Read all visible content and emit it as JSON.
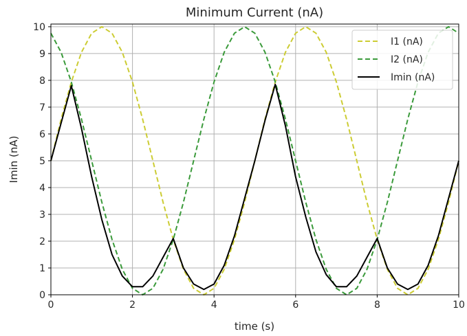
{
  "chart_data": {
    "type": "line",
    "title": "Minimum Current (nA)",
    "xlabel": "time (s)",
    "ylabel": "Imin (nA)",
    "xlim": [
      0,
      10
    ],
    "ylim": [
      0,
      10.1
    ],
    "xticks": [
      0,
      2,
      4,
      6,
      8,
      10
    ],
    "yticks": [
      0,
      1,
      2,
      3,
      4,
      5,
      6,
      7,
      8,
      9,
      10
    ],
    "grid": true,
    "legend_position": "top-right",
    "x": [
      0,
      0.25,
      0.5,
      0.75,
      1,
      1.25,
      1.5,
      1.75,
      2,
      2.25,
      2.5,
      2.75,
      3,
      3.25,
      3.5,
      3.75,
      4,
      4.25,
      4.5,
      4.75,
      5,
      5.25,
      5.5,
      5.75,
      6,
      6.25,
      6.5,
      6.75,
      7,
      7.25,
      7.5,
      7.75,
      8,
      8.25,
      8.5,
      8.75,
      9,
      9.25,
      9.5,
      9.75,
      10
    ],
    "series": [
      {
        "name": "I1 (nA)",
        "color": "#cccc33",
        "style": "dashed",
        "values": [
          5.0,
          6.55,
          7.94,
          9.05,
          9.76,
          10.0,
          9.76,
          9.05,
          7.94,
          6.55,
          5.0,
          3.45,
          2.06,
          0.95,
          0.24,
          0.0,
          0.24,
          0.95,
          2.06,
          3.45,
          5.0,
          6.55,
          7.94,
          9.05,
          9.76,
          10.0,
          9.76,
          9.05,
          7.94,
          6.55,
          5.0,
          3.45,
          2.06,
          0.95,
          0.24,
          0.0,
          0.24,
          0.95,
          2.06,
          3.45,
          5.0
        ]
      },
      {
        "name": "I2 (nA)",
        "color": "#3a9a3a",
        "style": "dashed",
        "values": [
          9.76,
          9.05,
          7.94,
          6.55,
          5.0,
          3.45,
          2.06,
          0.95,
          0.24,
          0.0,
          0.24,
          0.95,
          2.06,
          3.45,
          5.0,
          6.55,
          7.94,
          9.05,
          9.76,
          10.0,
          9.76,
          9.05,
          7.94,
          6.55,
          5.0,
          3.45,
          2.06,
          0.95,
          0.24,
          0.0,
          0.24,
          0.95,
          2.06,
          3.45,
          5.0,
          6.55,
          7.94,
          9.05,
          9.76,
          10.0,
          9.76
        ]
      },
      {
        "name": "Imin (nA)",
        "color": "#000000",
        "style": "solid",
        "values": [
          5.0,
          6.4,
          7.8,
          6.2,
          4.4,
          2.8,
          1.5,
          0.7,
          0.3,
          0.3,
          0.7,
          1.4,
          2.1,
          1.0,
          0.4,
          0.2,
          0.4,
          1.1,
          2.2,
          3.6,
          5.0,
          6.5,
          7.85,
          6.3,
          4.4,
          2.9,
          1.6,
          0.75,
          0.3,
          0.3,
          0.7,
          1.4,
          2.1,
          1.0,
          0.4,
          0.2,
          0.4,
          1.1,
          2.2,
          3.6,
          5.0
        ]
      }
    ]
  }
}
